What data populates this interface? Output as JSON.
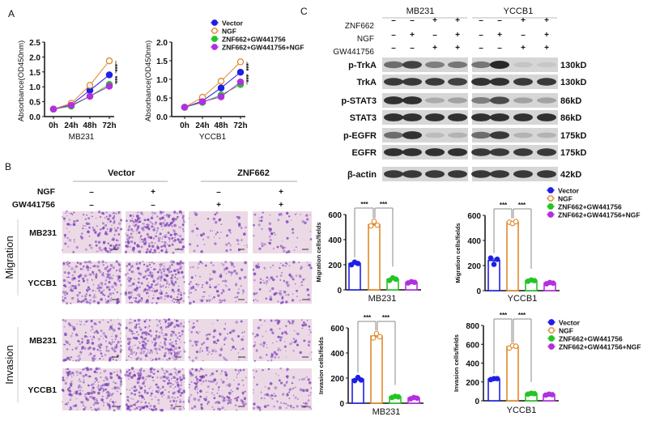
{
  "panel_labels": {
    "a": "A",
    "b": "B",
    "c": "C"
  },
  "legend": [
    "Vector",
    "NGF",
    "ZNF662+GW441756",
    "ZNF662+GW441756+NGF"
  ],
  "colors": {
    "vector": "#1f1fe6",
    "ngf": "#e0892a",
    "znf_gw": "#24c424",
    "znf_gw_ngf": "#b22fe0",
    "micrograph_bg": "#ecd9e6",
    "cell_stain": "#7b3fb8"
  },
  "chart_data": [
    {
      "type": "line",
      "title": "",
      "xlabel": "MB231",
      "ylabel": "Absorbance(OD450nm)",
      "x": [
        "0h",
        "24h",
        "48h",
        "72h"
      ],
      "ylim": [
        0,
        2.5
      ],
      "yticks": [
        "0.0",
        "0.5",
        "1.0",
        "1.5",
        "2.0",
        "2.5"
      ],
      "series": [
        {
          "name": "Vector",
          "values": [
            0.25,
            0.4,
            0.88,
            1.4
          ]
        },
        {
          "name": "NGF",
          "values": [
            0.25,
            0.45,
            1.05,
            1.87
          ]
        },
        {
          "name": "ZNF662+GW441756",
          "values": [
            0.25,
            0.35,
            0.68,
            1.08
          ]
        },
        {
          "name": "ZNF662+GW441756+NGF",
          "values": [
            0.25,
            0.38,
            0.68,
            1.02
          ]
        }
      ],
      "significance": [
        "***",
        "***"
      ]
    },
    {
      "type": "line",
      "title": "",
      "xlabel": "YCCB1",
      "ylabel": "Absorbance(OD450nm)",
      "x": [
        "0h",
        "24h",
        "48h",
        "72h"
      ],
      "ylim": [
        0,
        2.0
      ],
      "yticks": [
        "0.0",
        "0.5",
        "1.0",
        "1.5",
        "2.0"
      ],
      "series": [
        {
          "name": "Vector",
          "values": [
            0.25,
            0.42,
            0.77,
            1.19
          ]
        },
        {
          "name": "NGF",
          "values": [
            0.25,
            0.52,
            0.95,
            1.47
          ]
        },
        {
          "name": "ZNF662+GW441756",
          "values": [
            0.25,
            0.38,
            0.58,
            0.86
          ]
        },
        {
          "name": "ZNF662+GW441756+NGF",
          "values": [
            0.25,
            0.4,
            0.53,
            0.93
          ]
        }
      ],
      "significance": [
        "***",
        "***"
      ]
    },
    {
      "type": "bar",
      "xlabel": "MB231",
      "ylabel": "Migration cells/fields",
      "categories": [
        "Vector",
        "NGF",
        "ZNF662+GW441756",
        "ZNF662+GW441756+NGF"
      ],
      "values": [
        210,
        520,
        85,
        60
      ],
      "points": [
        [
          200,
          220,
          210
        ],
        [
          510,
          545,
          515
        ],
        [
          75,
          95,
          85
        ],
        [
          55,
          65,
          60
        ]
      ],
      "ylim": [
        0,
        600
      ],
      "yticks": [
        "0",
        "200",
        "400",
        "600"
      ],
      "significance": [
        "***",
        "***"
      ]
    },
    {
      "type": "bar",
      "xlabel": "YCCB1",
      "ylabel": "Migration cells/fields",
      "categories": [
        "Vector",
        "NGF",
        "ZNF662+GW441756",
        "ZNF662+GW441756+NGF"
      ],
      "values": [
        240,
        545,
        80,
        60
      ],
      "points": [
        [
          260,
          210,
          250
        ],
        [
          545,
          535,
          550
        ],
        [
          75,
          85,
          80
        ],
        [
          55,
          65,
          60
        ]
      ],
      "ylim": [
        0,
        600
      ],
      "yticks": [
        "0",
        "200",
        "400",
        "600"
      ],
      "significance": [
        "***",
        "***"
      ]
    },
    {
      "type": "bar",
      "xlabel": "MB231",
      "ylabel": "Invasion cells/fields",
      "categories": [
        "Vector",
        "NGF",
        "ZNF662+GW441756",
        "ZNF662+GW441756+NGF"
      ],
      "values": [
        190,
        535,
        50,
        40
      ],
      "points": [
        [
          180,
          205,
          185
        ],
        [
          520,
          555,
          530
        ],
        [
          45,
          55,
          50
        ],
        [
          35,
          45,
          40
        ]
      ],
      "ylim": [
        0,
        600
      ],
      "yticks": [
        "0",
        "200",
        "400",
        "600"
      ],
      "significance": [
        "***",
        "***"
      ]
    },
    {
      "type": "bar",
      "xlabel": "YCCB1",
      "ylabel": "Invasion cells/fields",
      "categories": [
        "Vector",
        "NGF",
        "ZNF662+GW441756",
        "ZNF662+GW441756+NGF"
      ],
      "values": [
        230,
        575,
        75,
        65
      ],
      "points": [
        [
          225,
          235,
          235
        ],
        [
          560,
          585,
          580
        ],
        [
          70,
          80,
          75
        ],
        [
          60,
          70,
          65
        ]
      ],
      "ylim": [
        0,
        800
      ],
      "yticks": [
        "0",
        "200",
        "400",
        "600",
        "800"
      ],
      "significance": [
        "***",
        "***"
      ]
    }
  ],
  "panel_b": {
    "groups": [
      "Vector",
      "ZNF662"
    ],
    "treatments": [
      {
        "label": "NGF",
        "signs": [
          "–",
          "+",
          "–",
          "+"
        ]
      },
      {
        "label": "GW441756",
        "signs": [
          "–",
          "–",
          "+",
          "+"
        ]
      }
    ],
    "assays": [
      {
        "label": "Migration",
        "rows": [
          {
            "cell_line": "MB231",
            "cell_density": [
              0.5,
              0.9,
              0.15,
              0.15
            ]
          },
          {
            "cell_line": "YCCB1",
            "cell_density": [
              0.8,
              0.85,
              0.35,
              0.3
            ]
          }
        ]
      },
      {
        "label": "Invasion",
        "rows": [
          {
            "cell_line": "MB231",
            "cell_density": [
              0.55,
              0.85,
              0.25,
              0.3
            ]
          },
          {
            "cell_line": "YCCB1",
            "cell_density": [
              0.75,
              0.85,
              0.5,
              0.3
            ]
          }
        ]
      }
    ]
  },
  "panel_c": {
    "cell_lines": [
      "MB231",
      "YCCB1"
    ],
    "treatments": [
      {
        "label": "ZNF662",
        "signs": [
          "–",
          "–",
          "+",
          "+",
          "–",
          "–",
          "+",
          "+"
        ]
      },
      {
        "label": "NGF",
        "signs": [
          "–",
          "+",
          "–",
          "+",
          "–",
          "+",
          "–",
          "+"
        ]
      },
      {
        "label": "GW441756",
        "signs": [
          "–",
          "–",
          "+",
          "+",
          "–",
          "–",
          "+",
          "+"
        ]
      }
    ],
    "blots": [
      {
        "protein": "p-TrkA",
        "size": "130kD",
        "intensity": [
          0.6,
          0.85,
          0.5,
          0.55,
          0.55,
          1.0,
          0.1,
          0.08
        ]
      },
      {
        "protein": "TrkA",
        "size": "130kD",
        "intensity": [
          0.9,
          0.9,
          0.9,
          0.85,
          0.95,
          0.95,
          0.9,
          0.9
        ]
      },
      {
        "protein": "p-STAT3",
        "size": "86kD",
        "intensity": [
          0.95,
          0.95,
          0.25,
          0.3,
          0.5,
          0.8,
          0.3,
          0.3
        ]
      },
      {
        "protein": "STAT3",
        "size": "86kD",
        "intensity": [
          0.95,
          0.95,
          0.95,
          0.95,
          0.95,
          0.95,
          0.95,
          0.95
        ]
      },
      {
        "protein": "p-EGFR",
        "size": "175kD",
        "intensity": [
          0.6,
          0.95,
          0.15,
          0.2,
          0.6,
          0.9,
          0.2,
          0.2
        ]
      },
      {
        "protein": "EGFR",
        "size": "175kD",
        "intensity": [
          0.95,
          0.95,
          0.95,
          0.95,
          0.9,
          0.9,
          0.9,
          0.9
        ]
      },
      {
        "protein": "β-actin",
        "size": "42kD",
        "intensity": [
          0.9,
          0.9,
          0.9,
          0.9,
          0.9,
          0.9,
          0.9,
          0.9
        ]
      }
    ]
  }
}
